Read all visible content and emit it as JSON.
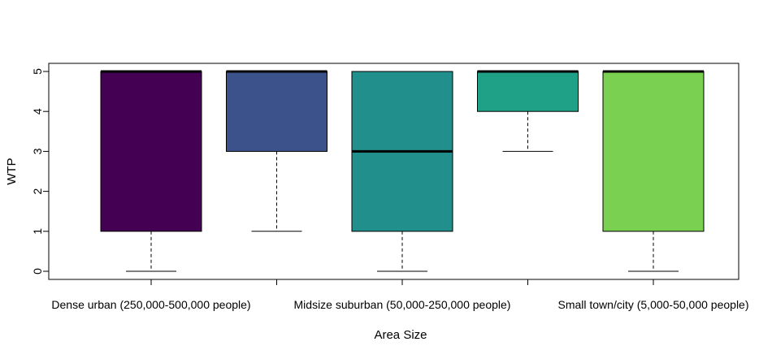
{
  "chart_data": {
    "type": "boxplot",
    "title": "",
    "xlabel": "Area Size",
    "ylabel": "WTP",
    "ylim": [
      0,
      5
    ],
    "yticks": [
      0,
      1,
      2,
      3,
      4,
      5
    ],
    "grid": false,
    "categories": [
      "Dense urban (250,000-500,000 people)",
      "",
      "Midsize suburban (50,000-250,000 people)",
      "",
      "Small town/city (5,000-50,000 people)"
    ],
    "boxes": [
      {
        "whisker_low": 0,
        "q1": 1,
        "median": 5,
        "q3": 5,
        "whisker_high": 5,
        "color": "#440154"
      },
      {
        "whisker_low": 1,
        "q1": 3,
        "median": 5,
        "q3": 5,
        "whisker_high": 5,
        "color": "#3B528B"
      },
      {
        "whisker_low": 0,
        "q1": 1,
        "median": 3,
        "q3": 5,
        "whisker_high": 5,
        "color": "#21908C"
      },
      {
        "whisker_low": 3,
        "q1": 4,
        "median": 5,
        "q3": 5,
        "whisker_high": 5,
        "color": "#1FA187"
      },
      {
        "whisker_low": 0,
        "q1": 1,
        "median": 5,
        "q3": 5,
        "whisker_high": 5,
        "color": "#7AD151"
      }
    ]
  }
}
